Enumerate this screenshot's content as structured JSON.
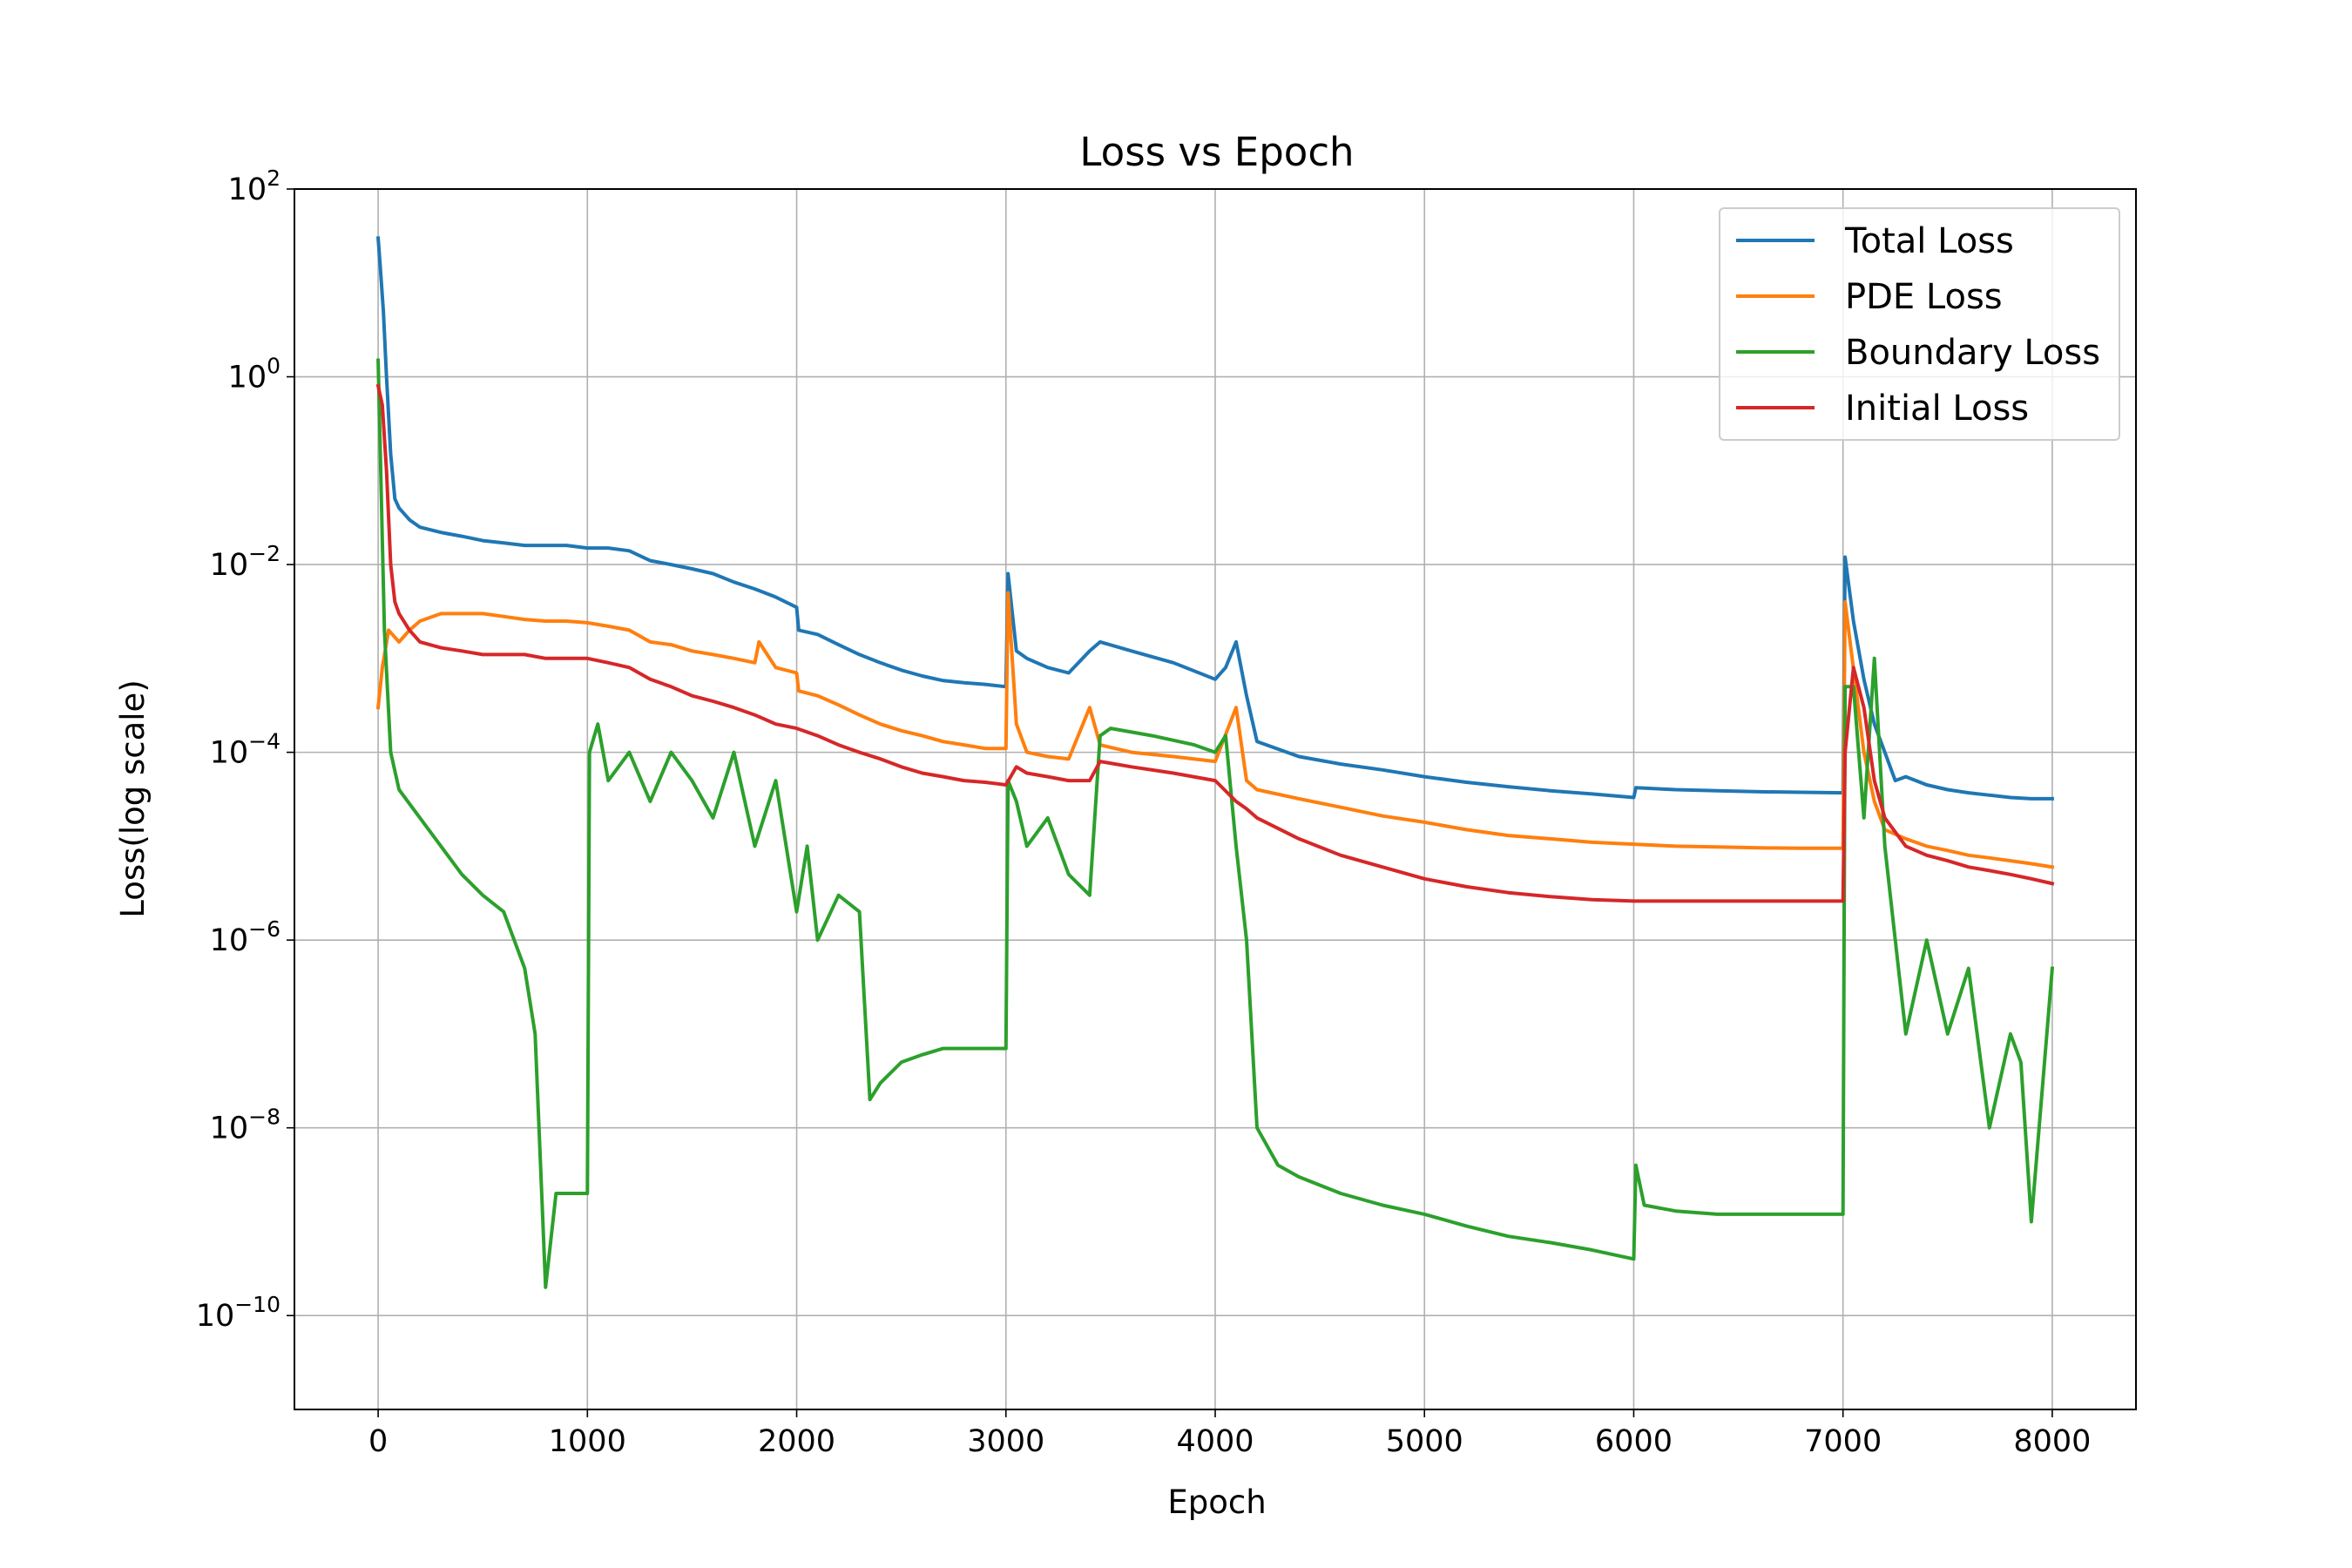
{
  "chart_data": {
    "type": "line",
    "title": "Loss vs Epoch",
    "xlabel": "Epoch",
    "ylabel": "Loss(log scale)",
    "xlim": [
      -400,
      8400
    ],
    "ylim": [
      1e-11,
      100
    ],
    "yscale": "log",
    "grid": true,
    "legend_position": "top-right",
    "xticks": [
      0,
      1000,
      2000,
      3000,
      4000,
      5000,
      6000,
      7000,
      8000
    ],
    "xtick_labels": [
      "0",
      "1000",
      "2000",
      "3000",
      "4000",
      "5000",
      "6000",
      "7000",
      "8000"
    ],
    "yticks": [
      {
        "exp": "2",
        "value": 100
      },
      {
        "exp": "0",
        "value": 1
      },
      {
        "exp": "-2",
        "value": 0.01
      },
      {
        "exp": "-4",
        "value": 0.0001
      },
      {
        "exp": "-6",
        "value": 1e-06
      },
      {
        "exp": "-8",
        "value": 1e-08
      },
      {
        "exp": "-10",
        "value": 1e-10
      }
    ],
    "series": [
      {
        "name": "Total Loss",
        "color": "#1f77b4",
        "x": [
          0,
          10,
          25,
          40,
          60,
          80,
          100,
          150,
          200,
          300,
          400,
          500,
          600,
          700,
          800,
          900,
          1000,
          1100,
          1200,
          1300,
          1400,
          1500,
          1600,
          1700,
          1800,
          1900,
          2000,
          2010,
          2100,
          2200,
          2300,
          2400,
          2500,
          2600,
          2700,
          2800,
          2900,
          3000,
          3010,
          3050,
          3100,
          3200,
          3300,
          3400,
          3450,
          3600,
          3800,
          4000,
          4050,
          4100,
          4150,
          4200,
          4400,
          4600,
          4800,
          5000,
          5200,
          5400,
          5600,
          5800,
          6000,
          6010,
          6200,
          6400,
          6600,
          6800,
          7000,
          7010,
          7050,
          7100,
          7150,
          7200,
          7250,
          7300,
          7400,
          7500,
          7600,
          7700,
          7800,
          7900,
          8000
        ],
        "y": [
          30,
          15,
          5,
          1.0,
          0.15,
          0.05,
          0.04,
          0.03,
          0.025,
          0.022,
          0.02,
          0.018,
          0.017,
          0.016,
          0.016,
          0.016,
          0.015,
          0.015,
          0.014,
          0.011,
          0.01,
          0.009,
          0.008,
          0.0065,
          0.0055,
          0.0045,
          0.0035,
          0.002,
          0.0018,
          0.0014,
          0.0011,
          0.0009,
          0.00075,
          0.00065,
          0.00058,
          0.00055,
          0.00053,
          0.0005,
          0.008,
          0.0012,
          0.001,
          0.0008,
          0.0007,
          0.0012,
          0.0015,
          0.0012,
          0.0009,
          0.0006,
          0.0008,
          0.0015,
          0.0004,
          0.00013,
          9e-05,
          7.5e-05,
          6.5e-05,
          5.5e-05,
          4.8e-05,
          4.3e-05,
          3.9e-05,
          3.6e-05,
          3.3e-05,
          4.2e-05,
          4e-05,
          3.9e-05,
          3.8e-05,
          3.75e-05,
          3.7e-05,
          0.012,
          0.0025,
          0.0006,
          0.0002,
          0.0001,
          5e-05,
          5.5e-05,
          4.5e-05,
          4e-05,
          3.7e-05,
          3.5e-05,
          3.3e-05,
          3.2e-05,
          3.2e-05
        ]
      },
      {
        "name": "PDE Loss",
        "color": "#ff7f0e",
        "x": [
          0,
          20,
          50,
          100,
          150,
          200,
          300,
          400,
          500,
          600,
          700,
          800,
          900,
          1000,
          1100,
          1200,
          1300,
          1400,
          1500,
          1600,
          1700,
          1800,
          1820,
          1900,
          2000,
          2010,
          2100,
          2200,
          2300,
          2400,
          2500,
          2600,
          2700,
          2800,
          2900,
          3000,
          3010,
          3050,
          3100,
          3200,
          3300,
          3400,
          3450,
          3600,
          3800,
          4000,
          4100,
          4150,
          4200,
          4400,
          4600,
          4800,
          5000,
          5200,
          5400,
          5600,
          5800,
          6000,
          6200,
          6400,
          6600,
          6800,
          7000,
          7010,
          7100,
          7150,
          7200,
          7300,
          7400,
          7500,
          7600,
          7700,
          7800,
          7900,
          8000
        ],
        "y": [
          0.0003,
          0.0008,
          0.002,
          0.0015,
          0.002,
          0.0025,
          0.003,
          0.003,
          0.003,
          0.0028,
          0.0026,
          0.0025,
          0.0025,
          0.0024,
          0.0022,
          0.002,
          0.0015,
          0.0014,
          0.0012,
          0.0011,
          0.001,
          0.0009,
          0.0015,
          0.0008,
          0.0007,
          0.00045,
          0.0004,
          0.00032,
          0.00025,
          0.0002,
          0.00017,
          0.00015,
          0.00013,
          0.00012,
          0.00011,
          0.00011,
          0.005,
          0.0002,
          0.0001,
          9e-05,
          8.5e-05,
          0.0003,
          0.00012,
          0.0001,
          9e-05,
          8e-05,
          0.0003,
          5e-05,
          4e-05,
          3.2e-05,
          2.6e-05,
          2.1e-05,
          1.8e-05,
          1.5e-05,
          1.3e-05,
          1.2e-05,
          1.1e-05,
          1.05e-05,
          1e-05,
          9.8e-06,
          9.6e-06,
          9.5e-06,
          9.5e-06,
          0.004,
          0.0001,
          3e-05,
          1.5e-05,
          1.2e-05,
          1e-05,
          9e-06,
          8e-06,
          7.5e-06,
          7e-06,
          6.5e-06,
          6e-06
        ]
      },
      {
        "name": "Boundary Loss",
        "color": "#2ca02c",
        "x": [
          0,
          30,
          60,
          100,
          200,
          300,
          400,
          500,
          600,
          700,
          750,
          800,
          850,
          900,
          1000,
          1010,
          1050,
          1100,
          1200,
          1300,
          1400,
          1500,
          1600,
          1700,
          1800,
          1900,
          2000,
          2050,
          2100,
          2200,
          2300,
          2350,
          2400,
          2500,
          2600,
          2700,
          2800,
          2900,
          3000,
          3010,
          3050,
          3100,
          3200,
          3300,
          3400,
          3450,
          3500,
          3700,
          3900,
          4000,
          4050,
          4100,
          4150,
          4200,
          4300,
          4400,
          4600,
          4800,
          5000,
          5200,
          5400,
          5600,
          5800,
          6000,
          6010,
          6050,
          6200,
          6400,
          6600,
          6800,
          7000,
          7010,
          7050,
          7100,
          7150,
          7200,
          7250,
          7300,
          7400,
          7500,
          7600,
          7700,
          7800,
          7850,
          7900,
          8000
        ],
        "y": [
          1.5,
          0.002,
          0.0001,
          4e-05,
          2e-05,
          1e-05,
          5e-06,
          3e-06,
          2e-06,
          5e-07,
          1e-07,
          2e-10,
          2e-09,
          2e-09,
          2e-09,
          0.0001,
          0.0002,
          5e-05,
          0.0001,
          3e-05,
          0.0001,
          5e-05,
          2e-05,
          0.0001,
          1e-05,
          5e-05,
          2e-06,
          1e-05,
          1e-06,
          3e-06,
          2e-06,
          2e-08,
          3e-08,
          5e-08,
          6e-08,
          7e-08,
          7e-08,
          7e-08,
          7e-08,
          5e-05,
          3e-05,
          1e-05,
          2e-05,
          5e-06,
          3e-06,
          0.00015,
          0.00018,
          0.00015,
          0.00012,
          0.0001,
          0.00015,
          1e-05,
          1e-06,
          1e-08,
          4e-09,
          3e-09,
          2e-09,
          1.5e-09,
          1.2e-09,
          9e-10,
          7e-10,
          6e-10,
          5e-10,
          4e-10,
          4e-09,
          1.5e-09,
          1.3e-09,
          1.2e-09,
          1.2e-09,
          1.2e-09,
          1.2e-09,
          0.0005,
          0.0005,
          2e-05,
          0.001,
          1e-05,
          1e-06,
          1e-07,
          1e-06,
          1e-07,
          5e-07,
          1e-08,
          1e-07,
          5e-08,
          1e-09,
          5e-07
        ]
      },
      {
        "name": "Initial Loss",
        "color": "#d62728",
        "x": [
          0,
          20,
          40,
          60,
          80,
          100,
          150,
          200,
          300,
          400,
          500,
          600,
          700,
          800,
          900,
          1000,
          1100,
          1200,
          1300,
          1400,
          1500,
          1600,
          1700,
          1800,
          1900,
          2000,
          2100,
          2200,
          2300,
          2400,
          2500,
          2600,
          2700,
          2800,
          2900,
          3000,
          3050,
          3100,
          3200,
          3300,
          3400,
          3450,
          3600,
          3800,
          4000,
          4100,
          4150,
          4200,
          4400,
          4600,
          4800,
          5000,
          5200,
          5400,
          5600,
          5800,
          6000,
          6200,
          6400,
          6600,
          6800,
          7000,
          7010,
          7050,
          7100,
          7150,
          7200,
          7300,
          7400,
          7500,
          7600,
          7700,
          7800,
          7900,
          8000
        ],
        "y": [
          0.8,
          0.5,
          0.1,
          0.01,
          0.004,
          0.003,
          0.002,
          0.0015,
          0.0013,
          0.0012,
          0.0011,
          0.0011,
          0.0011,
          0.001,
          0.001,
          0.001,
          0.0009,
          0.0008,
          0.0006,
          0.0005,
          0.0004,
          0.00035,
          0.0003,
          0.00025,
          0.0002,
          0.00018,
          0.00015,
          0.00012,
          0.0001,
          8.5e-05,
          7e-05,
          6e-05,
          5.5e-05,
          5e-05,
          4.8e-05,
          4.5e-05,
          7e-05,
          6e-05,
          5.5e-05,
          5e-05,
          5e-05,
          8e-05,
          7e-05,
          6e-05,
          5e-05,
          3e-05,
          2.5e-05,
          2e-05,
          1.2e-05,
          8e-06,
          6e-06,
          4.5e-06,
          3.7e-06,
          3.2e-06,
          2.9e-06,
          2.7e-06,
          2.6e-06,
          2.6e-06,
          2.6e-06,
          2.6e-06,
          2.6e-06,
          2.6e-06,
          0.0001,
          0.0008,
          0.0003,
          5e-05,
          2e-05,
          1e-05,
          8e-06,
          7e-06,
          6e-06,
          5.5e-06,
          5e-06,
          4.5e-06,
          4e-06
        ]
      }
    ]
  }
}
